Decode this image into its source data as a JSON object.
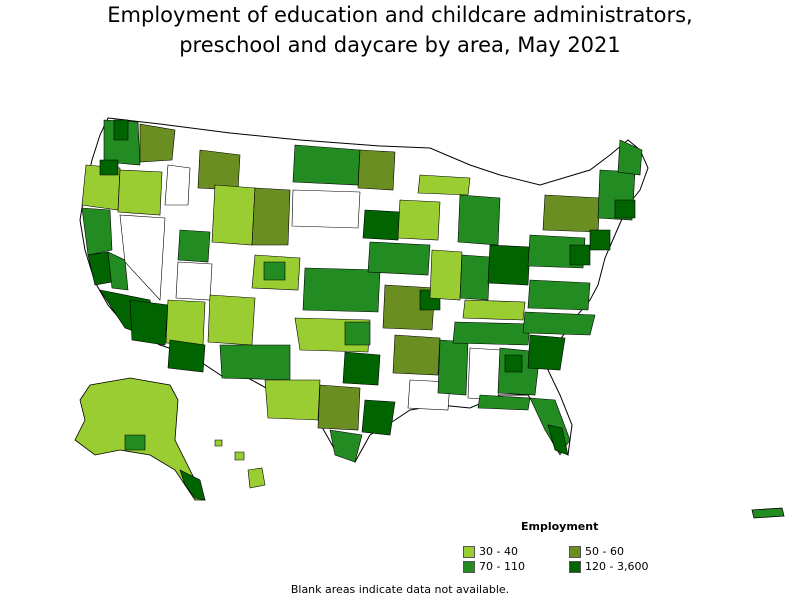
{
  "title_line1": "Employment of education and childcare administrators,",
  "title_line2": "preschool and daycare by area, May 2021",
  "legend": {
    "title": "Employment",
    "items": [
      {
        "label": "30 - 40",
        "color": "#9acd32"
      },
      {
        "label": "50 - 60",
        "color": "#6b8e23"
      },
      {
        "label": "70 - 110",
        "color": "#228b22"
      },
      {
        "label": "120 - 3,600",
        "color": "#006400"
      }
    ]
  },
  "footnote": "Blank areas indicate data not available.",
  "colors": {
    "blank": "#ffffff",
    "border": "#000000"
  }
}
